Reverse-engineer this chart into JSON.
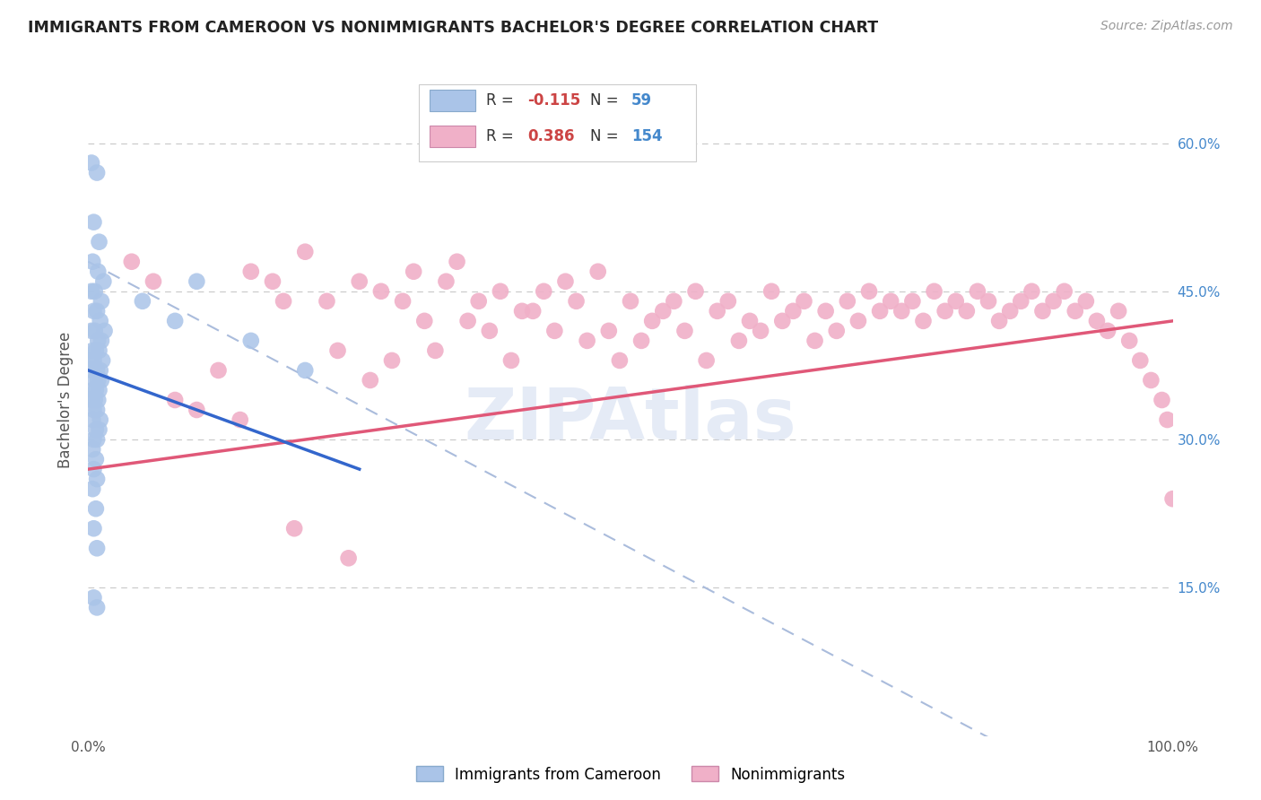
{
  "title": "IMMIGRANTS FROM CAMEROON VS NONIMMIGRANTS BACHELOR'S DEGREE CORRELATION CHART",
  "source": "Source: ZipAtlas.com",
  "ylabel": "Bachelor's Degree",
  "xlim": [
    0,
    100
  ],
  "ylim": [
    0,
    68
  ],
  "ytick_vals": [
    15,
    30,
    45,
    60
  ],
  "watermark": "ZIPAtlas",
  "background_color": "#ffffff",
  "grid_color": "#c8c8c8",
  "blue_dot_color": "#aac4e8",
  "pink_dot_color": "#f0b0c8",
  "blue_line_color": "#3366cc",
  "pink_line_color": "#e05878",
  "blue_dashed_color": "#aabcdc",
  "blue_scatter": [
    [
      0.3,
      58
    ],
    [
      0.8,
      57
    ],
    [
      0.5,
      52
    ],
    [
      1.0,
      50
    ],
    [
      0.4,
      48
    ],
    [
      0.9,
      47
    ],
    [
      1.4,
      46
    ],
    [
      0.3,
      45
    ],
    [
      0.6,
      45
    ],
    [
      1.2,
      44
    ],
    [
      0.5,
      43
    ],
    [
      0.8,
      43
    ],
    [
      1.1,
      42
    ],
    [
      1.5,
      41
    ],
    [
      0.3,
      41
    ],
    [
      0.6,
      41
    ],
    [
      0.9,
      40
    ],
    [
      1.2,
      40
    ],
    [
      0.4,
      39
    ],
    [
      0.7,
      39
    ],
    [
      1.0,
      39
    ],
    [
      1.3,
      38
    ],
    [
      0.2,
      38
    ],
    [
      0.5,
      38
    ],
    [
      0.8,
      37
    ],
    [
      1.1,
      37
    ],
    [
      0.3,
      37
    ],
    [
      0.6,
      36
    ],
    [
      0.9,
      36
    ],
    [
      1.2,
      36
    ],
    [
      0.4,
      35
    ],
    [
      0.7,
      35
    ],
    [
      1.0,
      35
    ],
    [
      0.3,
      34
    ],
    [
      0.6,
      34
    ],
    [
      0.9,
      34
    ],
    [
      0.5,
      33
    ],
    [
      0.8,
      33
    ],
    [
      1.1,
      32
    ],
    [
      0.4,
      32
    ],
    [
      0.7,
      31
    ],
    [
      1.0,
      31
    ],
    [
      0.5,
      30
    ],
    [
      0.8,
      30
    ],
    [
      0.4,
      29
    ],
    [
      0.7,
      28
    ],
    [
      0.5,
      27
    ],
    [
      0.8,
      26
    ],
    [
      0.4,
      25
    ],
    [
      0.7,
      23
    ],
    [
      0.5,
      21
    ],
    [
      0.8,
      19
    ],
    [
      0.5,
      14
    ],
    [
      0.8,
      13
    ],
    [
      5,
      44
    ],
    [
      10,
      46
    ],
    [
      15,
      40
    ],
    [
      20,
      37
    ],
    [
      8,
      42
    ]
  ],
  "pink_scatter": [
    [
      4,
      48
    ],
    [
      6,
      46
    ],
    [
      8,
      34
    ],
    [
      10,
      33
    ],
    [
      12,
      37
    ],
    [
      14,
      32
    ],
    [
      15,
      47
    ],
    [
      17,
      46
    ],
    [
      18,
      44
    ],
    [
      19,
      21
    ],
    [
      20,
      49
    ],
    [
      22,
      44
    ],
    [
      23,
      39
    ],
    [
      24,
      18
    ],
    [
      25,
      46
    ],
    [
      26,
      36
    ],
    [
      27,
      45
    ],
    [
      28,
      38
    ],
    [
      29,
      44
    ],
    [
      30,
      47
    ],
    [
      31,
      42
    ],
    [
      32,
      39
    ],
    [
      33,
      46
    ],
    [
      34,
      48
    ],
    [
      35,
      42
    ],
    [
      36,
      44
    ],
    [
      37,
      41
    ],
    [
      38,
      45
    ],
    [
      39,
      38
    ],
    [
      40,
      43
    ],
    [
      41,
      43
    ],
    [
      42,
      45
    ],
    [
      43,
      41
    ],
    [
      44,
      46
    ],
    [
      45,
      44
    ],
    [
      46,
      40
    ],
    [
      47,
      47
    ],
    [
      48,
      41
    ],
    [
      49,
      38
    ],
    [
      50,
      44
    ],
    [
      51,
      40
    ],
    [
      52,
      42
    ],
    [
      53,
      43
    ],
    [
      54,
      44
    ],
    [
      55,
      41
    ],
    [
      56,
      45
    ],
    [
      57,
      38
    ],
    [
      58,
      43
    ],
    [
      59,
      44
    ],
    [
      60,
      40
    ],
    [
      61,
      42
    ],
    [
      62,
      41
    ],
    [
      63,
      45
    ],
    [
      64,
      42
    ],
    [
      65,
      43
    ],
    [
      66,
      44
    ],
    [
      67,
      40
    ],
    [
      68,
      43
    ],
    [
      69,
      41
    ],
    [
      70,
      44
    ],
    [
      71,
      42
    ],
    [
      72,
      45
    ],
    [
      73,
      43
    ],
    [
      74,
      44
    ],
    [
      75,
      43
    ],
    [
      76,
      44
    ],
    [
      77,
      42
    ],
    [
      78,
      45
    ],
    [
      79,
      43
    ],
    [
      80,
      44
    ],
    [
      81,
      43
    ],
    [
      82,
      45
    ],
    [
      83,
      44
    ],
    [
      84,
      42
    ],
    [
      85,
      43
    ],
    [
      86,
      44
    ],
    [
      87,
      45
    ],
    [
      88,
      43
    ],
    [
      89,
      44
    ],
    [
      90,
      45
    ],
    [
      91,
      43
    ],
    [
      92,
      44
    ],
    [
      93,
      42
    ],
    [
      94,
      41
    ],
    [
      95,
      43
    ],
    [
      96,
      40
    ],
    [
      97,
      38
    ],
    [
      98,
      36
    ],
    [
      99,
      34
    ],
    [
      99.5,
      32
    ],
    [
      100,
      24
    ]
  ],
  "blue_trend": [
    0,
    37,
    25,
    27
  ],
  "pink_trend": [
    0,
    27,
    100,
    42
  ],
  "blue_dashed": [
    0,
    48,
    100,
    -10
  ]
}
